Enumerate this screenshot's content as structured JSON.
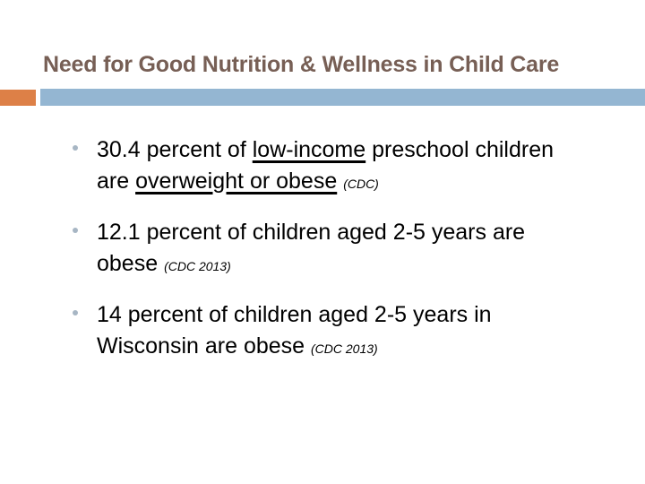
{
  "title": {
    "text": "Need for Good Nutrition & Wellness in Child Care"
  },
  "colors": {
    "title": "#775F55",
    "accent_orange": "#DD8047",
    "accent_blue": "#94B6D2",
    "body_text": "#000000",
    "bullet_dot": "#A7B6C4",
    "background": "#FFFFFF"
  },
  "bullets": [
    {
      "lines": [
        [
          {
            "text": "30.4 percent of "
          },
          {
            "text": "low-income",
            "underline": true
          },
          {
            "text": " preschool children"
          }
        ],
        [
          {
            "text": "are "
          },
          {
            "text": "overweight or obese",
            "underline": true
          },
          {
            "text": " "
          },
          {
            "text": "(CDC)",
            "citation": true
          }
        ]
      ]
    },
    {
      "lines": [
        [
          {
            "text": "12.1 percent of children aged 2-5 years are"
          }
        ],
        [
          {
            "text": "obese "
          },
          {
            "text": " (CDC 2013)",
            "citation": true
          }
        ]
      ]
    },
    {
      "lines": [
        [
          {
            "text": "14 percent of children aged 2-5 years in"
          }
        ],
        [
          {
            "text": "Wisconsin are obese "
          },
          {
            "text": " (CDC 2013)",
            "citation": true
          }
        ]
      ]
    }
  ]
}
